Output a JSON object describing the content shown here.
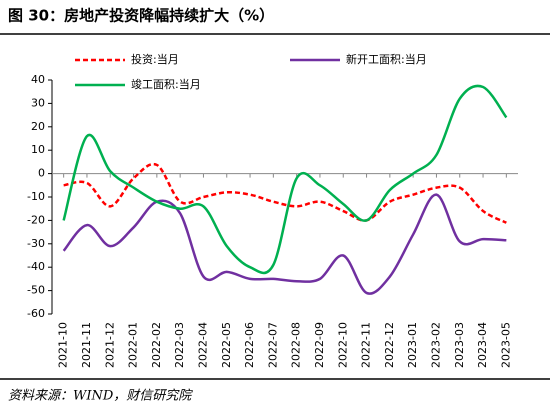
{
  "chart_data": {
    "type": "line",
    "title": "图 30：房地产投资降幅持续扩大（%）",
    "source": "资料来源：WIND，财信研究院",
    "categories": [
      "2021-10",
      "2021-11",
      "2021-12",
      "2022-01",
      "2022-02",
      "2022-03",
      "2022-04",
      "2022-05",
      "2022-06",
      "2022-07",
      "2022-08",
      "2022-09",
      "2022-10",
      "2022-11",
      "2022-12",
      "2023-01",
      "2023-02",
      "2023-03",
      "2023-04",
      "2023-05"
    ],
    "series": [
      {
        "name": "投资:当月",
        "color": "#ff0000",
        "dash": true,
        "values": [
          -5,
          -4,
          -14,
          -2,
          3.7,
          -12,
          -10,
          -8,
          -9,
          -12,
          -14,
          -12,
          -16,
          -20,
          -12,
          -9,
          -6,
          -6,
          -16,
          -21
        ]
      },
      {
        "name": "新开工面积:当月",
        "color": "#7030a0",
        "dash": false,
        "values": [
          -33,
          -22,
          -31,
          -23,
          -12,
          -17,
          -44,
          -42,
          -45,
          -45,
          -46,
          -45,
          -35,
          -51,
          -44,
          -26,
          -9,
          -29,
          -28,
          -28.5
        ]
      },
      {
        "name": "竣工面积:当月",
        "color": "#00b050",
        "dash": false,
        "values": [
          -20,
          16,
          1,
          -6,
          -12,
          -15,
          -14,
          -31,
          -40,
          -39,
          -2,
          -5,
          -13,
          -20,
          -7,
          0,
          8,
          32,
          37,
          24
        ]
      }
    ],
    "ylim": [
      -60,
      40
    ],
    "yticks": [
      -60,
      -50,
      -40,
      -30,
      -20,
      -10,
      0,
      10,
      20,
      30,
      40
    ]
  }
}
